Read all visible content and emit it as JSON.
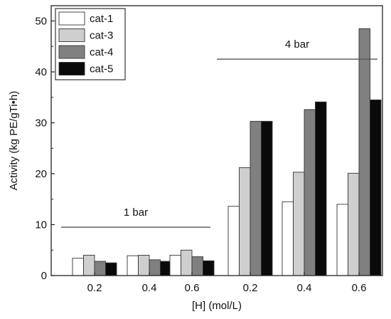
{
  "chart_data": {
    "type": "bar",
    "xlabel": "[H] (mol/L)",
    "ylabel": "Activity (kg PE/gTi•h)",
    "ylim": [
      0,
      53
    ],
    "yticks": [
      0,
      10,
      20,
      30,
      40,
      50
    ],
    "categories": [
      "0.2",
      "0.4",
      "0.6",
      "0.2",
      "0.4",
      "0.6"
    ],
    "series": [
      {
        "name": "cat-1",
        "color": "#ffffff",
        "values": [
          3.4,
          3.9,
          4.0,
          13.6,
          14.5,
          14.0
        ]
      },
      {
        "name": "cat-3",
        "color": "#cfcfcf",
        "values": [
          4.0,
          4.0,
          5.0,
          21.2,
          20.3,
          20.1
        ]
      },
      {
        "name": "cat-4",
        "color": "#808080",
        "values": [
          2.8,
          3.1,
          3.7,
          30.3,
          32.6,
          48.5
        ]
      },
      {
        "name": "cat-5",
        "color": "#0a0a0a",
        "values": [
          2.5,
          2.8,
          2.9,
          30.3,
          34.1,
          34.5
        ]
      }
    ],
    "annotations": [
      {
        "text": "1 bar",
        "groups": [
          0,
          2
        ],
        "y": 9.5
      },
      {
        "text": "4 bar",
        "groups": [
          3,
          5
        ],
        "y": 42.5
      }
    ],
    "legend": "top-left",
    "grid": false
  }
}
